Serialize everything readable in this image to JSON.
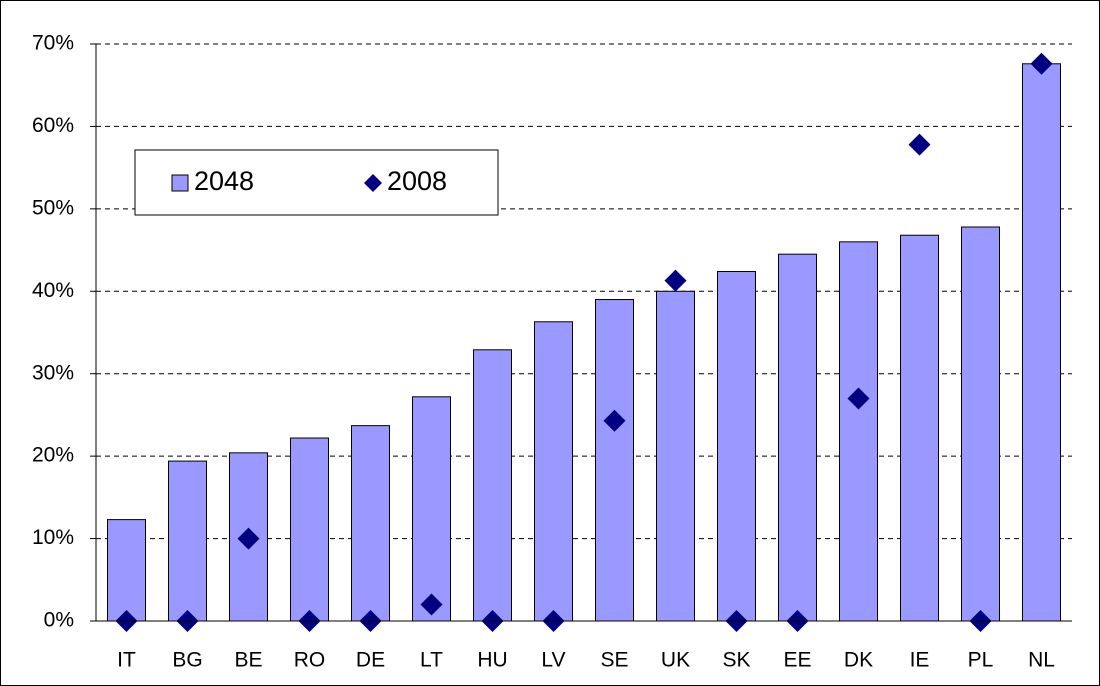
{
  "chart_data": {
    "type": "bar",
    "categories": [
      "IT",
      "BG",
      "BE",
      "RO",
      "DE",
      "LT",
      "HU",
      "LV",
      "SE",
      "UK",
      "SK",
      "EE",
      "DK",
      "IE",
      "PL",
      "NL"
    ],
    "series": [
      {
        "name": "2048",
        "color": "#9999ff",
        "type": "bar",
        "values": [
          12.3,
          19.4,
          20.4,
          22.2,
          23.7,
          27.2,
          32.9,
          36.3,
          39.0,
          40.0,
          42.4,
          44.5,
          46.0,
          46.8,
          47.8,
          67.6
        ]
      },
      {
        "name": "2008",
        "color": "#000080",
        "type": "scatter",
        "values": [
          0,
          0,
          10,
          0,
          0,
          2,
          0,
          0,
          24.3,
          41.3,
          0,
          0,
          27,
          57.8,
          0,
          67.6
        ]
      }
    ],
    "ylim": [
      0,
      70
    ],
    "yticks": [
      {
        "value": 0,
        "label": "0%"
      },
      {
        "value": 10,
        "label": "10%"
      },
      {
        "value": 20,
        "label": "20%"
      },
      {
        "value": 30,
        "label": "30%"
      },
      {
        "value": 40,
        "label": "40%"
      },
      {
        "value": 50,
        "label": "50%"
      },
      {
        "value": 60,
        "label": "60%"
      },
      {
        "value": 70,
        "label": "70%"
      }
    ],
    "grid": true,
    "legend": "upper left"
  }
}
